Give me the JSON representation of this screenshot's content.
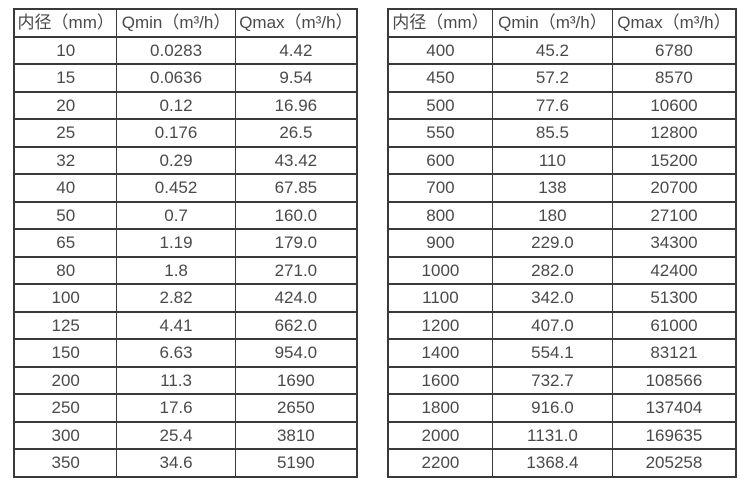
{
  "page": {
    "background_color": "#ffffff",
    "text_color": "#4a4a4a",
    "border_color": "#3a3a3a"
  },
  "chart_data": [
    {
      "type": "table",
      "name": "flow-table-left",
      "columns": [
        "内径（mm）",
        "Qmin（m³/h）",
        "Qmax（m³/h）"
      ],
      "rows": [
        [
          "10",
          "0.0283",
          "4.42"
        ],
        [
          "15",
          "0.0636",
          "9.54"
        ],
        [
          "20",
          "0.12",
          "16.96"
        ],
        [
          "25",
          "0.176",
          "26.5"
        ],
        [
          "32",
          "0.29",
          "43.42"
        ],
        [
          "40",
          "0.452",
          "67.85"
        ],
        [
          "50",
          "0.7",
          "160.0"
        ],
        [
          "65",
          "1.19",
          "179.0"
        ],
        [
          "80",
          "1.8",
          "271.0"
        ],
        [
          "100",
          "2.82",
          "424.0"
        ],
        [
          "125",
          "4.41",
          "662.0"
        ],
        [
          "150",
          "6.63",
          "954.0"
        ],
        [
          "200",
          "11.3",
          "1690"
        ],
        [
          "250",
          "17.6",
          "2650"
        ],
        [
          "300",
          "25.4",
          "3810"
        ],
        [
          "350",
          "34.6",
          "5190"
        ]
      ]
    },
    {
      "type": "table",
      "name": "flow-table-right",
      "columns": [
        "内径（mm）",
        "Qmin（m³/h）",
        "Qmax（m³/h）"
      ],
      "rows": [
        [
          "400",
          "45.2",
          "6780"
        ],
        [
          "450",
          "57.2",
          "8570"
        ],
        [
          "500",
          "77.6",
          "10600"
        ],
        [
          "550",
          "85.5",
          "12800"
        ],
        [
          "600",
          "110",
          "15200"
        ],
        [
          "700",
          "138",
          "20700"
        ],
        [
          "800",
          "180",
          "27100"
        ],
        [
          "900",
          "229.0",
          "34300"
        ],
        [
          "1000",
          "282.0",
          "42400"
        ],
        [
          "1100",
          "342.0",
          "51300"
        ],
        [
          "1200",
          "407.0",
          "61000"
        ],
        [
          "1400",
          "554.1",
          "83121"
        ],
        [
          "1600",
          "732.7",
          "108566"
        ],
        [
          "1800",
          "916.0",
          "137404"
        ],
        [
          "2000",
          "1131.0",
          "169635"
        ],
        [
          "2200",
          "1368.4",
          "205258"
        ]
      ]
    }
  ]
}
